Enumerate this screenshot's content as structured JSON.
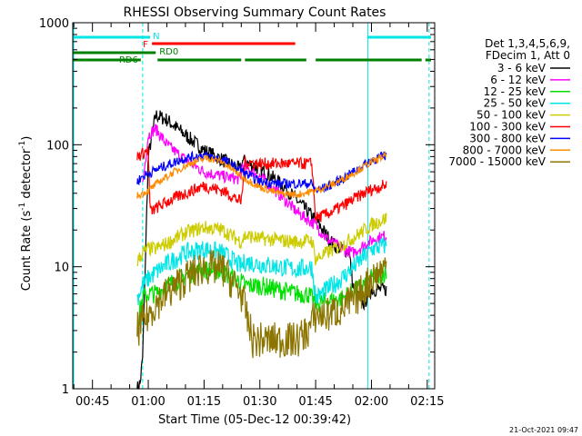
{
  "chart_data": {
    "type": "line",
    "title": "RHESSI Observing Summary Count Rates",
    "xlabel": "Start Time (05-Dec-12 00:39:42)",
    "ylabel_main": "Count Rate (s",
    "ylabel_sup1": "-1",
    "ylabel_mid": " detector",
    "ylabel_sup2": "-1",
    "ylabel_end": ")",
    "y_scale": "log",
    "ylim": [
      1,
      1000
    ],
    "xlim": [
      39.7,
      137
    ],
    "x_unit": "minutes after 00:00 UT",
    "y_ticks": [
      {
        "label": "1",
        "value": 1
      },
      {
        "label": "10",
        "value": 10
      },
      {
        "label": "100",
        "value": 100
      },
      {
        "label": "1000",
        "value": 1000
      }
    ],
    "x_ticks": [
      {
        "label": "00:45",
        "value": 45
      },
      {
        "label": "01:00",
        "value": 60
      },
      {
        "label": "01:15",
        "value": 75
      },
      {
        "label": "01:30",
        "value": 90
      },
      {
        "label": "01:45",
        "value": 105
      },
      {
        "label": "02:00",
        "value": 120
      },
      {
        "label": "02:15",
        "value": 135
      }
    ],
    "legend_header": [
      "Det 1,3,4,5,6,9,",
      "FDecim 1, Att 0"
    ],
    "legend_placement": "right",
    "timestamp": "21-Oct-2021 09:47",
    "flags": {
      "night_label": "N",
      "night_color": "#00e5e5",
      "night": [
        [
          39.7,
          60.5
        ],
        [
          119,
          136
        ]
      ],
      "flare_label": "F",
      "flare_color": "#ff0000",
      "flare": [
        [
          61,
          99.5
        ]
      ],
      "rd0_label": "RD0",
      "rd6_label": "RD6",
      "saa_color": "#008000",
      "rd0": [
        [
          39.7,
          62
        ]
      ],
      "rd6": [
        [
          39.7,
          58
        ],
        [
          62.5,
          85
        ],
        [
          86,
          102.5
        ],
        [
          105,
          133.5
        ],
        [
          134.5,
          136
        ]
      ]
    },
    "night_lines": [
      58.5,
      119,
      135.5
    ],
    "series": [
      {
        "name": "3 - 6 keV",
        "color": "#000000",
        "noise": 0.06,
        "x": [
          57,
          57.8,
          58.5,
          60,
          62,
          65,
          70,
          75,
          80,
          85,
          85.1,
          88,
          92,
          96,
          100,
          104,
          105,
          106,
          108,
          110,
          112,
          114,
          115,
          116,
          118,
          120,
          122,
          124
        ],
        "y": [
          1,
          1.1,
          1.8,
          80,
          175,
          160,
          120,
          90,
          75,
          62,
          75,
          68,
          58,
          47,
          35,
          26,
          24,
          22,
          18,
          15,
          14,
          13.5,
          7,
          6,
          5,
          6.5,
          6.5,
          6.5
        ]
      },
      {
        "name": "6 - 12 keV",
        "color": "#ff00ff",
        "noise": 0.05,
        "x": [
          58.5,
          60,
          62,
          65,
          70,
          75,
          80,
          85,
          85.1,
          90,
          95,
          100,
          105,
          108,
          112,
          115,
          118,
          121,
          124
        ],
        "y": [
          48,
          120,
          135,
          100,
          75,
          60,
          55,
          52,
          68,
          55,
          40,
          28,
          22,
          17,
          14,
          13,
          15,
          17,
          18
        ]
      },
      {
        "name": "12 - 25 keV",
        "color": "#00e000",
        "noise": 0.08,
        "x": [
          57,
          58.5,
          60,
          62,
          65,
          70,
          75,
          80,
          85,
          86,
          90,
          95,
          100,
          103,
          105,
          108,
          112,
          116,
          120,
          124
        ],
        "y": [
          3.5,
          5.5,
          6,
          6,
          7,
          8.5,
          9.5,
          9,
          7.5,
          7,
          7,
          6.5,
          6,
          6,
          5,
          5.2,
          5.5,
          6.5,
          8,
          9
        ]
      },
      {
        "name": "25 - 50 keV",
        "color": "#00e5e5",
        "noise": 0.08,
        "x": [
          57,
          58.5,
          60,
          62,
          65,
          70,
          75,
          80,
          85,
          86,
          90,
          95,
          100,
          104,
          105,
          108,
          112,
          116,
          120,
          124
        ],
        "y": [
          5.5,
          7,
          8,
          9,
          10.5,
          13,
          14,
          13,
          10,
          11,
          10.5,
          10,
          9.5,
          10,
          5.5,
          6.5,
          8,
          10.5,
          14,
          15
        ]
      },
      {
        "name": "50 - 100 keV",
        "color": "#cccc00",
        "noise": 0.06,
        "x": [
          57,
          58.5,
          60,
          62,
          65,
          70,
          75,
          80,
          85,
          86,
          90,
          95,
          100,
          104,
          105,
          108,
          112,
          116,
          120,
          124
        ],
        "y": [
          11,
          13,
          14,
          14,
          15.5,
          19,
          21,
          20,
          16,
          18,
          17,
          16.5,
          16,
          16.5,
          11.5,
          13,
          15,
          18,
          22,
          25
        ]
      },
      {
        "name": "100 - 300 keV",
        "color": "#ff0000",
        "noise": 0.05,
        "x": [
          57,
          58.5,
          60,
          60.5,
          62,
          65,
          70,
          75,
          80,
          85,
          86,
          90,
          95,
          100,
          104,
          105,
          108,
          112,
          116,
          120,
          124
        ],
        "y": [
          80,
          85,
          90,
          28,
          30,
          34,
          40,
          46,
          42,
          34,
          72,
          70,
          70,
          70,
          70,
          25,
          27,
          31,
          37,
          43,
          47
        ]
      },
      {
        "name": "300 - 800 keV",
        "color": "#0000ff",
        "noise": 0.04,
        "x": [
          57,
          58.5,
          60,
          62,
          65,
          70,
          75,
          80,
          85,
          86,
          90,
          95,
          100,
          104,
          105,
          108,
          112,
          116,
          120,
          124
        ],
        "y": [
          50,
          55,
          58,
          62,
          68,
          78,
          82,
          75,
          62,
          58,
          50,
          48,
          48,
          48,
          42,
          45,
          52,
          62,
          75,
          82
        ]
      },
      {
        "name": "800 - 7000 keV",
        "color": "#ff8c00",
        "noise": 0.03,
        "x": [
          57,
          60,
          63,
          67,
          72,
          76,
          80,
          85,
          90,
          95,
          100,
          105,
          110,
          115,
          120,
          124
        ],
        "y": [
          38,
          42,
          50,
          60,
          72,
          78,
          72,
          55,
          45,
          40,
          39,
          42,
          48,
          58,
          72,
          82
        ]
      },
      {
        "name": "7000 - 15000 keV",
        "color": "#8b7500",
        "noise": 0.15,
        "x": [
          57,
          58.5,
          60,
          62,
          65,
          70,
          75,
          80,
          85,
          86,
          88,
          95,
          100,
          103,
          105,
          108,
          112,
          116,
          120,
          124
        ],
        "y": [
          3,
          3.5,
          4,
          5,
          6,
          8,
          10,
          9.5,
          6,
          4.5,
          2.5,
          2.5,
          2.5,
          3,
          4,
          4,
          4.5,
          5.5,
          8,
          10
        ]
      }
    ]
  }
}
